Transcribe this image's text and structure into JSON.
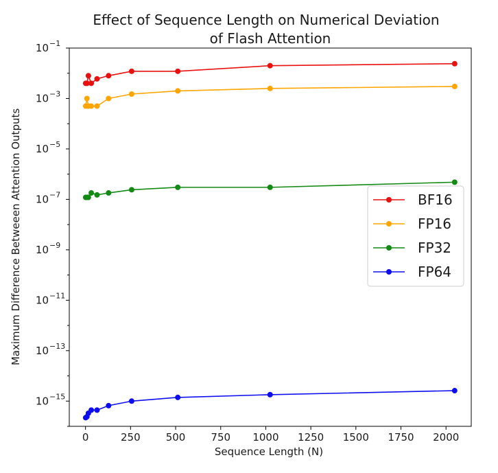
{
  "chart_data": {
    "type": "line",
    "title_line1": "Effect of Sequence Length on Numerical Deviation",
    "title_line2": "of Flash Attention",
    "xlabel": "Sequence Length (N)",
    "ylabel": "Maximum Difference Betweeen Attention Outputs",
    "xlim": [
      -90,
      2140
    ],
    "ylim": [
      1e-16,
      0.1
    ],
    "yscale": "log",
    "xticks": [
      0,
      250,
      500,
      750,
      1000,
      1250,
      1500,
      1750,
      2000
    ],
    "yticks": [
      {
        "exp": -15,
        "base": "10",
        "sup": "−15"
      },
      {
        "exp": -13,
        "base": "10",
        "sup": "−13"
      },
      {
        "exp": -11,
        "base": "10",
        "sup": "−11"
      },
      {
        "exp": -9,
        "base": "10",
        "sup": "−9"
      },
      {
        "exp": -7,
        "base": "10",
        "sup": "−7"
      },
      {
        "exp": -5,
        "base": "10",
        "sup": "−5"
      },
      {
        "exp": -3,
        "base": "10",
        "sup": "−3"
      },
      {
        "exp": -1,
        "base": "10",
        "sup": "−1"
      }
    ],
    "legend_position": "center-right",
    "series": [
      {
        "name": "BF16",
        "color": "#e8110f",
        "x": [
          1,
          8,
          16,
          32,
          64,
          128,
          256,
          512,
          1024,
          2048
        ],
        "y": [
          0.004,
          0.004,
          0.008,
          0.004,
          0.006,
          0.008,
          0.012,
          0.012,
          0.02,
          0.024
        ]
      },
      {
        "name": "FP16",
        "color": "#ffa500",
        "x": [
          1,
          8,
          16,
          32,
          64,
          128,
          256,
          512,
          1024,
          2048
        ],
        "y": [
          0.0005,
          0.001,
          0.0005,
          0.0005,
          0.0005,
          0.001,
          0.0015,
          0.002,
          0.0025,
          0.003
        ]
      },
      {
        "name": "FP32",
        "color": "#138a13",
        "x": [
          1,
          8,
          16,
          32,
          64,
          128,
          256,
          512,
          1024,
          2048
        ],
        "y": [
          1.2e-07,
          1.2e-07,
          1.2e-07,
          1.8e-07,
          1.5e-07,
          1.8e-07,
          2.4e-07,
          3e-07,
          3e-07,
          4.8e-07
        ]
      },
      {
        "name": "FP64",
        "color": "#0d0dee",
        "x": [
          1,
          8,
          16,
          32,
          64,
          128,
          256,
          512,
          1024,
          2048
        ],
        "y": [
          2.2e-16,
          2.4e-16,
          3.3e-16,
          4.4e-16,
          4.4e-16,
          6.6e-16,
          1e-15,
          1.4e-15,
          1.8e-15,
          2.6e-15
        ]
      }
    ]
  }
}
